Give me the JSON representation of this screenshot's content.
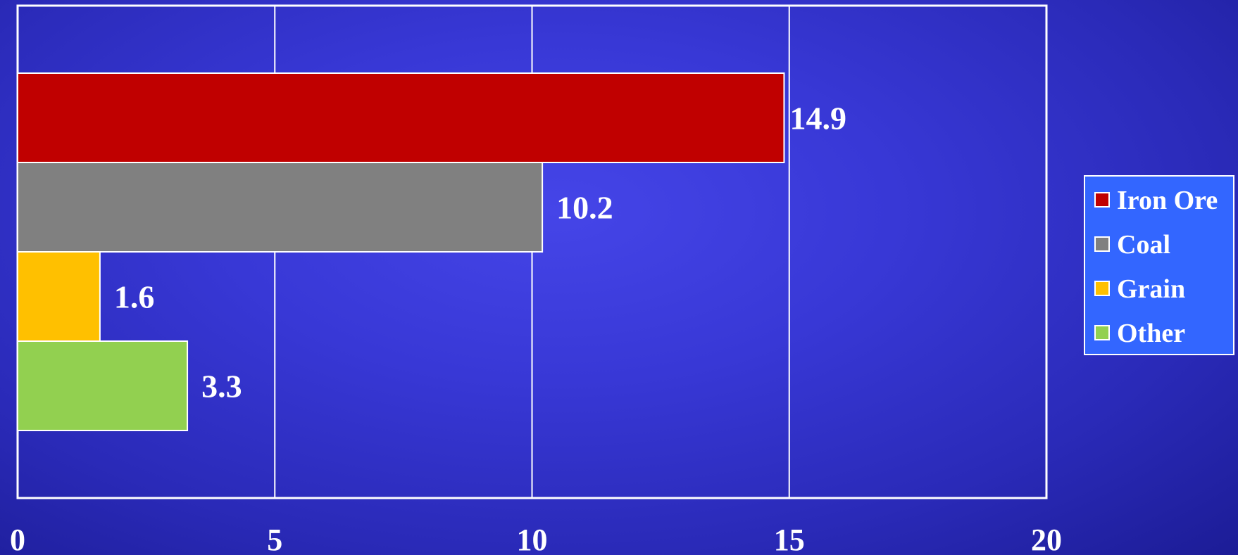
{
  "chart_data": {
    "type": "bar",
    "orientation": "horizontal",
    "series": [
      {
        "name": "Iron Ore",
        "value": 14.9,
        "label": "14.9",
        "color": "#c00000"
      },
      {
        "name": "Coal",
        "value": 10.2,
        "label": "10.2",
        "color": "#808080"
      },
      {
        "name": "Grain",
        "value": 1.6,
        "label": "1.6",
        "color": "#ffc000"
      },
      {
        "name": "Other",
        "value": 3.3,
        "label": "3.3",
        "color": "#92d050"
      }
    ],
    "xlim": [
      0,
      20
    ],
    "x_ticks": [
      0,
      5,
      10,
      15,
      20
    ],
    "x_tick_labels": [
      "0",
      "5",
      "10",
      "15",
      "20"
    ],
    "grid": true,
    "legend_position": "right",
    "colors": {
      "background": "#3535d0",
      "gridline": "#ffffff",
      "legend_background": "#3366ff"
    }
  }
}
